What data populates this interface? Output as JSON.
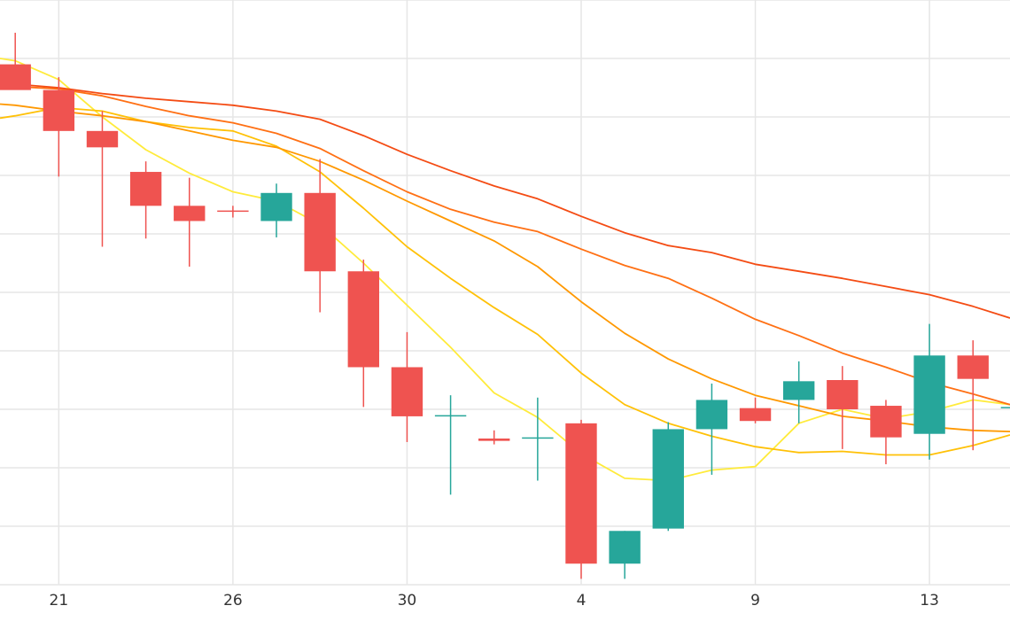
{
  "chart_data": {
    "type": "candlestick",
    "title": "",
    "xlabel": "",
    "ylabel": "",
    "x_tick_labels": [
      {
        "label": "21",
        "index": 1
      },
      {
        "label": "26",
        "index": 5
      },
      {
        "label": "30",
        "index": 9
      },
      {
        "label": "4",
        "index": 13
      },
      {
        "label": "9",
        "index": 17
      },
      {
        "label": "13",
        "index": 21
      }
    ],
    "x_range": [
      -0.35,
      22.85
    ],
    "ylim": [
      50,
      100
    ],
    "grid": true,
    "up_color": "#26a69a",
    "down_color": "#ef5350",
    "candles": [
      {
        "i": 0,
        "open": 94.5,
        "high": 97.2,
        "low": 92.6,
        "close": 92.3
      },
      {
        "i": 1,
        "open": 92.3,
        "high": 93.4,
        "low": 84.9,
        "close": 88.8
      },
      {
        "i": 2,
        "open": 88.8,
        "high": 90.5,
        "low": 78.9,
        "close": 87.4
      },
      {
        "i": 3,
        "open": 85.3,
        "high": 86.2,
        "low": 79.6,
        "close": 82.4
      },
      {
        "i": 4,
        "open": 82.4,
        "high": 84.8,
        "low": 77.2,
        "close": 81.1
      },
      {
        "i": 5,
        "open": 82.0,
        "high": 82.4,
        "low": 81.4,
        "close": 81.9
      },
      {
        "i": 6,
        "open": 81.1,
        "high": 84.3,
        "low": 79.7,
        "close": 83.5
      },
      {
        "i": 7,
        "open": 83.5,
        "high": 86.4,
        "low": 73.3,
        "close": 76.8
      },
      {
        "i": 8,
        "open": 76.8,
        "high": 77.8,
        "low": 65.2,
        "close": 68.6
      },
      {
        "i": 9,
        "open": 68.6,
        "high": 71.6,
        "low": 62.2,
        "close": 64.4
      },
      {
        "i": 10,
        "open": 64.5,
        "high": 66.2,
        "low": 57.7,
        "close": 64.5
      },
      {
        "i": 11,
        "open": 62.5,
        "high": 63.2,
        "low": 62.0,
        "close": 62.3
      },
      {
        "i": 12,
        "open": 62.5,
        "high": 66.0,
        "low": 58.9,
        "close": 62.6
      },
      {
        "i": 13,
        "open": 63.8,
        "high": 64.1,
        "low": 50.5,
        "close": 51.8
      },
      {
        "i": 14,
        "open": 51.8,
        "high": 54.6,
        "low": 50.5,
        "close": 54.6
      },
      {
        "i": 15,
        "open": 54.8,
        "high": 63.9,
        "low": 54.6,
        "close": 63.3
      },
      {
        "i": 16,
        "open": 63.3,
        "high": 67.2,
        "low": 59.4,
        "close": 65.8
      },
      {
        "i": 17,
        "open": 65.1,
        "high": 66.0,
        "low": 63.8,
        "close": 64.0
      },
      {
        "i": 18,
        "open": 65.8,
        "high": 69.1,
        "low": 63.8,
        "close": 67.4
      },
      {
        "i": 19,
        "open": 67.5,
        "high": 68.7,
        "low": 61.6,
        "close": 65.0
      },
      {
        "i": 20,
        "open": 65.3,
        "high": 65.8,
        "low": 60.3,
        "close": 62.6
      },
      {
        "i": 21,
        "open": 62.9,
        "high": 72.3,
        "low": 60.7,
        "close": 69.6
      },
      {
        "i": 22,
        "open": 69.6,
        "high": 70.9,
        "low": 61.5,
        "close": 67.6
      },
      {
        "i": 23,
        "open": 65.2,
        "high": 66.0,
        "low": 64.8,
        "close": 65.2
      }
    ],
    "series": [
      {
        "color": "#ffeb3b",
        "values": [
          [
            -0.35,
            95.0
          ],
          [
            0,
            94.8
          ],
          [
            1,
            93.2
          ],
          [
            2,
            90.0
          ],
          [
            3,
            87.2
          ],
          [
            4,
            85.2
          ],
          [
            5,
            83.6
          ],
          [
            6,
            82.8
          ],
          [
            7,
            80.8
          ],
          [
            8,
            77.5
          ],
          [
            9,
            73.9
          ],
          [
            10,
            70.3
          ],
          [
            11,
            66.4
          ],
          [
            12,
            64.3
          ],
          [
            13,
            61.2
          ],
          [
            14,
            59.1
          ],
          [
            15,
            58.9
          ],
          [
            16,
            59.8
          ],
          [
            17,
            60.1
          ],
          [
            18,
            63.8
          ],
          [
            19,
            65.0
          ],
          [
            20,
            64.2
          ],
          [
            21,
            64.8
          ],
          [
            22,
            65.8
          ],
          [
            22.85,
            65.4
          ]
        ]
      },
      {
        "color": "#ffc107",
        "values": [
          [
            -0.35,
            89.9
          ],
          [
            0,
            90.1
          ],
          [
            1,
            90.8
          ],
          [
            2,
            90.5
          ],
          [
            3,
            89.6
          ],
          [
            4,
            89.1
          ],
          [
            5,
            88.8
          ],
          [
            6,
            87.5
          ],
          [
            7,
            85.3
          ],
          [
            8,
            82.2
          ],
          [
            9,
            78.9
          ],
          [
            10,
            76.2
          ],
          [
            11,
            73.7
          ],
          [
            12,
            71.4
          ],
          [
            13,
            68.1
          ],
          [
            14,
            65.4
          ],
          [
            15,
            63.8
          ],
          [
            16,
            62.7
          ],
          [
            17,
            61.8
          ],
          [
            18,
            61.3
          ],
          [
            19,
            61.4
          ],
          [
            20,
            61.1
          ],
          [
            21,
            61.1
          ],
          [
            22,
            61.9
          ],
          [
            22.85,
            62.8
          ]
        ]
      },
      {
        "color": "#ff9800",
        "values": [
          [
            -0.35,
            91.1
          ],
          [
            0,
            91.0
          ],
          [
            1,
            90.5
          ],
          [
            2,
            90.1
          ],
          [
            3,
            89.6
          ],
          [
            4,
            88.8
          ],
          [
            5,
            88.0
          ],
          [
            6,
            87.4
          ],
          [
            7,
            86.2
          ],
          [
            8,
            84.6
          ],
          [
            9,
            82.8
          ],
          [
            10,
            81.1
          ],
          [
            11,
            79.4
          ],
          [
            12,
            77.2
          ],
          [
            13,
            74.2
          ],
          [
            14,
            71.5
          ],
          [
            15,
            69.3
          ],
          [
            16,
            67.6
          ],
          [
            17,
            66.2
          ],
          [
            18,
            65.3
          ],
          [
            19,
            64.4
          ],
          [
            20,
            64.0
          ],
          [
            21,
            63.5
          ],
          [
            22,
            63.2
          ],
          [
            22.85,
            63.1
          ]
        ]
      },
      {
        "color": "#ff7014",
        "values": [
          [
            -0.35,
            92.4
          ],
          [
            0,
            92.6
          ],
          [
            1,
            92.4
          ],
          [
            2,
            91.8
          ],
          [
            3,
            90.9
          ],
          [
            4,
            90.1
          ],
          [
            5,
            89.5
          ],
          [
            6,
            88.6
          ],
          [
            7,
            87.3
          ],
          [
            8,
            85.4
          ],
          [
            9,
            83.6
          ],
          [
            10,
            82.1
          ],
          [
            11,
            81.0
          ],
          [
            12,
            80.2
          ],
          [
            13,
            78.7
          ],
          [
            14,
            77.3
          ],
          [
            15,
            76.2
          ],
          [
            16,
            74.5
          ],
          [
            17,
            72.7
          ],
          [
            18,
            71.3
          ],
          [
            19,
            69.8
          ],
          [
            20,
            68.6
          ],
          [
            21,
            67.3
          ],
          [
            22,
            66.3
          ],
          [
            22.85,
            65.4
          ]
        ]
      },
      {
        "color": "#f44c14",
        "values": [
          [
            -0.35,
            93.0
          ],
          [
            0,
            92.8
          ],
          [
            1,
            92.5
          ],
          [
            2,
            92.0
          ],
          [
            3,
            91.6
          ],
          [
            4,
            91.3
          ],
          [
            5,
            91.0
          ],
          [
            6,
            90.5
          ],
          [
            7,
            89.8
          ],
          [
            8,
            88.4
          ],
          [
            9,
            86.8
          ],
          [
            10,
            85.4
          ],
          [
            11,
            84.1
          ],
          [
            12,
            83.0
          ],
          [
            13,
            81.5
          ],
          [
            14,
            80.1
          ],
          [
            15,
            79.0
          ],
          [
            16,
            78.4
          ],
          [
            17,
            77.4
          ],
          [
            18,
            76.8
          ],
          [
            19,
            76.2
          ],
          [
            20,
            75.5
          ],
          [
            21,
            74.8
          ],
          [
            22,
            73.8
          ],
          [
            22.85,
            72.8
          ]
        ]
      }
    ]
  }
}
